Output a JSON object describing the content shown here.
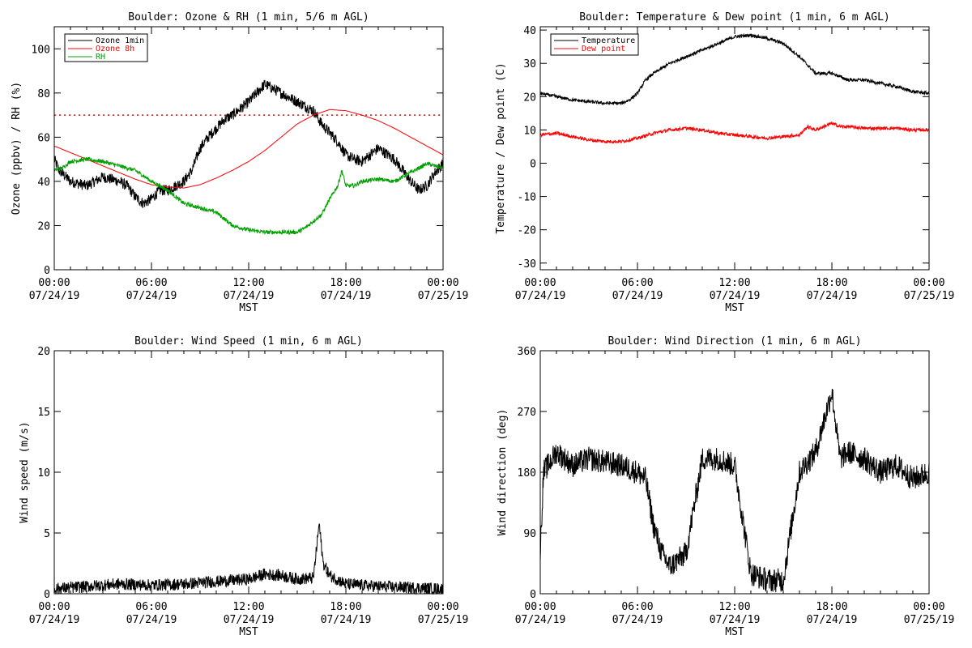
{
  "page": {
    "station": "Boulder",
    "time_range": [
      "07/24/19 00:00",
      "07/25/19 00:00"
    ]
  },
  "colors": {
    "black": "#000000",
    "red": "#ff0000",
    "green": "#00a000"
  },
  "chart_data": [
    {
      "id": "ozone-rh",
      "type": "line",
      "title": "Boulder: Ozone & RH (1 min, 5/6 m AGL)",
      "xlabel": "MST",
      "ylabel": "Ozone (ppbv) / RH (%)",
      "xlim": [
        0,
        24
      ],
      "ylim": [
        0,
        110
      ],
      "yticks": [
        0,
        20,
        40,
        60,
        80,
        100
      ],
      "xticks": [
        {
          "x": 0,
          "time": "00:00",
          "date": "07/24/19"
        },
        {
          "x": 6,
          "time": "06:00",
          "date": "07/24/19"
        },
        {
          "x": 12,
          "time": "12:00",
          "date": "07/24/19"
        },
        {
          "x": 18,
          "time": "18:00",
          "date": "07/24/19"
        },
        {
          "x": 24,
          "time": "00:00",
          "date": "07/25/19"
        }
      ],
      "legend_position": "top-left",
      "reference_line": {
        "y": 70,
        "color": "#ff0000",
        "style": "dotted"
      },
      "series": [
        {
          "name": "Ozone 1min",
          "color": "#000000",
          "noise": 2.5,
          "points": [
            [
              0,
              50
            ],
            [
              0.3,
              45
            ],
            [
              1,
              40
            ],
            [
              2,
              38
            ],
            [
              3,
              42
            ],
            [
              4,
              40
            ],
            [
              4.5,
              38
            ],
            [
              5,
              33
            ],
            [
              5.5,
              30
            ],
            [
              6,
              32
            ],
            [
              6.5,
              36
            ],
            [
              7,
              36
            ],
            [
              7.5,
              38
            ],
            [
              8,
              40
            ],
            [
              8.5,
              45
            ],
            [
              9,
              55
            ],
            [
              9.5,
              60
            ],
            [
              10,
              64
            ],
            [
              10.5,
              68
            ],
            [
              11,
              70
            ],
            [
              11.5,
              73
            ],
            [
              12,
              76
            ],
            [
              12.5,
              80
            ],
            [
              13,
              84
            ],
            [
              13.5,
              82
            ],
            [
              14,
              80
            ],
            [
              14.5,
              78
            ],
            [
              15,
              76
            ],
            [
              16,
              72
            ],
            [
              16.5,
              66
            ],
            [
              17,
              62
            ],
            [
              17.5,
              58
            ],
            [
              18,
              52
            ],
            [
              18.5,
              50
            ],
            [
              19,
              49
            ],
            [
              20,
              55
            ],
            [
              21,
              50
            ],
            [
              21.5,
              45
            ],
            [
              22,
              40
            ],
            [
              22.5,
              36
            ],
            [
              23,
              38
            ],
            [
              23.5,
              44
            ],
            [
              24,
              48
            ]
          ]
        },
        {
          "name": "Ozone 8h",
          "color": "#ff0000",
          "noise": 0,
          "points": [
            [
              0,
              56
            ],
            [
              1,
              53
            ],
            [
              2,
              50
            ],
            [
              3,
              47
            ],
            [
              4,
              44
            ],
            [
              5,
              41
            ],
            [
              6,
              38.5
            ],
            [
              7,
              37.5
            ],
            [
              8,
              37
            ],
            [
              9,
              38.5
            ],
            [
              10,
              41.5
            ],
            [
              11,
              45
            ],
            [
              12,
              49
            ],
            [
              13,
              54
            ],
            [
              14,
              60
            ],
            [
              15,
              66
            ],
            [
              16,
              70
            ],
            [
              17,
              72.5
            ],
            [
              18,
              72
            ],
            [
              19,
              70
            ],
            [
              20,
              67.5
            ],
            [
              21,
              64
            ],
            [
              22,
              60
            ],
            [
              23,
              56
            ],
            [
              24,
              52
            ]
          ]
        },
        {
          "name": "RH",
          "color": "#00a000",
          "noise": 0.9,
          "points": [
            [
              0,
              45
            ],
            [
              0.5,
              46
            ],
            [
              1,
              49
            ],
            [
              2,
              50
            ],
            [
              3,
              49
            ],
            [
              4,
              47
            ],
            [
              5,
              45
            ],
            [
              6,
              40
            ],
            [
              7,
              36
            ],
            [
              7.5,
              33
            ],
            [
              8,
              30
            ],
            [
              9,
              28
            ],
            [
              10,
              26
            ],
            [
              10.5,
              23
            ],
            [
              11,
              20
            ],
            [
              12,
              18
            ],
            [
              13,
              17
            ],
            [
              14,
              17
            ],
            [
              15,
              17
            ],
            [
              15.5,
              19
            ],
            [
              16,
              22
            ],
            [
              16.5,
              25
            ],
            [
              17,
              32
            ],
            [
              17.5,
              38
            ],
            [
              17.75,
              45
            ],
            [
              18,
              38
            ],
            [
              18.5,
              38
            ],
            [
              19,
              40
            ],
            [
              20,
              41
            ],
            [
              21,
              40
            ],
            [
              21.5,
              42
            ],
            [
              22,
              44
            ],
            [
              23,
              48
            ],
            [
              24,
              46
            ]
          ]
        }
      ]
    },
    {
      "id": "temp-dewpoint",
      "type": "line",
      "title": "Boulder: Temperature & Dew point (1 min, 6 m AGL)",
      "xlabel": "MST",
      "ylabel": "Temperature / Dew point (C)",
      "xlim": [
        0,
        24
      ],
      "ylim": [
        -32,
        41
      ],
      "yticks": [
        -30,
        -20,
        -10,
        0,
        10,
        20,
        30,
        40
      ],
      "xticks": [
        {
          "x": 0,
          "time": "00:00",
          "date": "07/24/19"
        },
        {
          "x": 6,
          "time": "06:00",
          "date": "07/24/19"
        },
        {
          "x": 12,
          "time": "12:00",
          "date": "07/24/19"
        },
        {
          "x": 18,
          "time": "18:00",
          "date": "07/24/19"
        },
        {
          "x": 24,
          "time": "00:00",
          "date": "07/25/19"
        }
      ],
      "legend_position": "top-left",
      "series": [
        {
          "name": "Temperature",
          "color": "#000000",
          "noise": 0.5,
          "points": [
            [
              0,
              21
            ],
            [
              1,
              20
            ],
            [
              2,
              19
            ],
            [
              3,
              18.5
            ],
            [
              4,
              18
            ],
            [
              5,
              18
            ],
            [
              5.5,
              19
            ],
            [
              6,
              21
            ],
            [
              6.5,
              25
            ],
            [
              7,
              27
            ],
            [
              8,
              30
            ],
            [
              9,
              32
            ],
            [
              10,
              34
            ],
            [
              11,
              36
            ],
            [
              12,
              38
            ],
            [
              13,
              38.5
            ],
            [
              14,
              37.5
            ],
            [
              15,
              36
            ],
            [
              16,
              32
            ],
            [
              17,
              27
            ],
            [
              18,
              27
            ],
            [
              19,
              25
            ],
            [
              20,
              25
            ],
            [
              21,
              24
            ],
            [
              22,
              23
            ],
            [
              23,
              21.5
            ],
            [
              24,
              21
            ]
          ]
        },
        {
          "name": "Dew point",
          "color": "#ff0000",
          "noise": 0.5,
          "points": [
            [
              0,
              8.5
            ],
            [
              1,
              9
            ],
            [
              2,
              8
            ],
            [
              3,
              7
            ],
            [
              4,
              6.5
            ],
            [
              5,
              6.5
            ],
            [
              6,
              7.5
            ],
            [
              7,
              9
            ],
            [
              8,
              10
            ],
            [
              9,
              10.5
            ],
            [
              10,
              10
            ],
            [
              11,
              9
            ],
            [
              12,
              8.5
            ],
            [
              13,
              8
            ],
            [
              14,
              7.5
            ],
            [
              15,
              8
            ],
            [
              16,
              8.5
            ],
            [
              16.5,
              11
            ],
            [
              17,
              10
            ],
            [
              18,
              12
            ],
            [
              18.5,
              11
            ],
            [
              19,
              11
            ],
            [
              20,
              10.5
            ],
            [
              21,
              10.5
            ],
            [
              22,
              10.5
            ],
            [
              23,
              10
            ],
            [
              24,
              10
            ]
          ]
        }
      ]
    },
    {
      "id": "wind-speed",
      "type": "line",
      "title": "Boulder: Wind Speed (1 min, 6 m AGL)",
      "xlabel": "MST",
      "ylabel": "Wind speed (m/s)",
      "xlim": [
        0,
        24
      ],
      "ylim": [
        0,
        20
      ],
      "yticks": [
        0,
        5,
        10,
        15,
        20
      ],
      "xticks": [
        {
          "x": 0,
          "time": "00:00",
          "date": "07/24/19"
        },
        {
          "x": 6,
          "time": "06:00",
          "date": "07/24/19"
        },
        {
          "x": 12,
          "time": "12:00",
          "date": "07/24/19"
        },
        {
          "x": 18,
          "time": "18:00",
          "date": "07/24/19"
        },
        {
          "x": 24,
          "time": "00:00",
          "date": "07/25/19"
        }
      ],
      "series": [
        {
          "name": "",
          "color": "#000000",
          "noise": 0.5,
          "floor": 0,
          "points": [
            [
              0,
              0.4
            ],
            [
              2,
              0.6
            ],
            [
              4,
              0.8
            ],
            [
              6,
              0.7
            ],
            [
              8,
              0.8
            ],
            [
              10,
              1.0
            ],
            [
              12,
              1.2
            ],
            [
              13,
              1.6
            ],
            [
              14,
              1.5
            ],
            [
              15,
              1.2
            ],
            [
              16,
              1.3
            ],
            [
              16.35,
              5.8
            ],
            [
              16.6,
              2.5
            ],
            [
              17,
              1.5
            ],
            [
              18,
              0.8
            ],
            [
              20,
              0.6
            ],
            [
              22,
              0.5
            ],
            [
              24,
              0.4
            ]
          ]
        }
      ]
    },
    {
      "id": "wind-direction",
      "type": "line",
      "title": "Boulder: Wind Direction (1 min, 6 m AGL)",
      "xlabel": "MST",
      "ylabel": "Wind direction (deg)",
      "xlim": [
        0,
        24
      ],
      "ylim": [
        0,
        360
      ],
      "yticks": [
        0,
        90,
        180,
        270,
        360
      ],
      "xticks": [
        {
          "x": 0,
          "time": "00:00",
          "date": "07/24/19"
        },
        {
          "x": 6,
          "time": "06:00",
          "date": "07/24/19"
        },
        {
          "x": 12,
          "time": "12:00",
          "date": "07/24/19"
        },
        {
          "x": 18,
          "time": "18:00",
          "date": "07/24/19"
        },
        {
          "x": 24,
          "time": "00:00",
          "date": "07/25/19"
        }
      ],
      "series": [
        {
          "name": "",
          "color": "#000000",
          "noise": 18,
          "floor": 0,
          "ceil": 360,
          "points": [
            [
              0,
              60
            ],
            [
              0.2,
              180
            ],
            [
              1,
              210
            ],
            [
              2,
              190
            ],
            [
              3,
              200
            ],
            [
              4,
              195
            ],
            [
              5,
              190
            ],
            [
              6,
              180
            ],
            [
              6.5,
              170
            ],
            [
              7,
              100
            ],
            [
              7.5,
              60
            ],
            [
              8,
              40
            ],
            [
              9,
              60
            ],
            [
              10,
              200
            ],
            [
              11,
              200
            ],
            [
              12,
              190
            ],
            [
              13,
              30
            ],
            [
              14,
              20
            ],
            [
              15,
              20
            ],
            [
              16,
              180
            ],
            [
              17,
              210
            ],
            [
              18,
              300
            ],
            [
              18.5,
              200
            ],
            [
              19,
              210
            ],
            [
              20,
              200
            ],
            [
              21,
              180
            ],
            [
              22,
              190
            ],
            [
              23,
              170
            ],
            [
              24,
              180
            ]
          ]
        }
      ]
    }
  ]
}
